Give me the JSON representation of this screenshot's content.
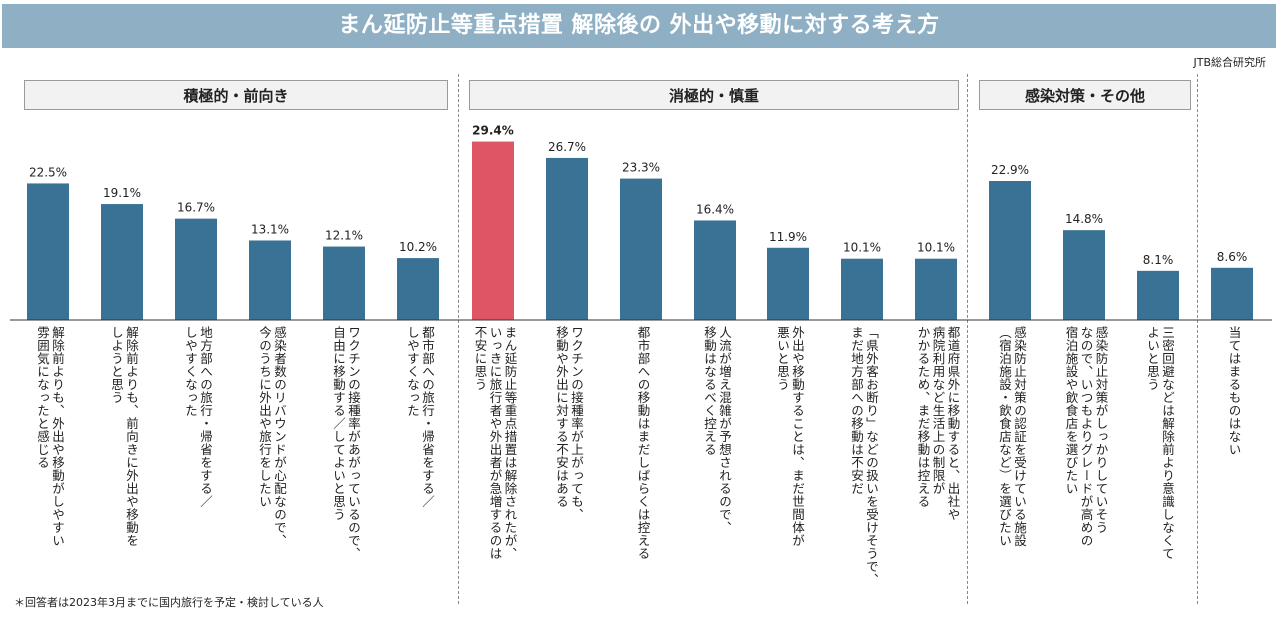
{
  "header": {
    "title": "まん延防止等重点措置 解除後の 外出や移動に対する考え方",
    "source": "JTB総合研究所"
  },
  "groups": [
    {
      "label": "積極的・前向き"
    },
    {
      "label": "消極的・慎重"
    },
    {
      "label": "感染対策・その他"
    }
  ],
  "footnote": "＊回答者は2023年3月までに国内旅行を予定・検討している人",
  "colors": {
    "bar": "#3a7295",
    "highlight": "#e05566"
  },
  "chart_data": {
    "type": "bar",
    "categories": [
      "解除前よりも、外出や移動がしやすい\n雰囲気になったと感じる",
      "解除前よりも、前向きに外出や移動を\nしようと思う",
      "地方部への旅行・帰省をする／\nしやすくなった",
      "感染者数のリバウンドが心配なので、\n今のうちに外出や旅行をしたい",
      "ワクチンの接種率があがっているので、\n自由に移動する／してよいと思う",
      "都市部への旅行・帰省をする／\nしやすくなった",
      "まん延防止等重点措置は解除されたが、\nいっきに旅行者や外出者が急増するのは\n不安に思う",
      "ワクチンの接種率が上がっても、\n移動や外出に対する不安はある",
      "都市部への移動はまだしばらくは控える",
      "人流が増え混雑が予想されるので、\n移動はなるべく控える",
      "外出や移動することは、まだ世間体が\n悪いと思う",
      "「県外客お断り」などの扱いを受けそうで、\nまだ地方部への移動は不安だ",
      "都道府県外に移動すると、出社や\n病院利用など生活上の制限が\nかかるため、まだ移動は控える",
      "感染防止対策の認証を受けている施設\n（宿泊施設・飲食店など）を選びたい",
      "感染防止対策がしっかりしていそう\nなので、いつもよりグレードが高めの\n宿泊施設や飲食店を選びたい",
      "三密回避などは解除前より意識しなくて\nよいと思う",
      "当てはまるものはない"
    ],
    "values": [
      22.5,
      19.1,
      16.7,
      13.1,
      12.1,
      10.2,
      29.4,
      26.7,
      23.3,
      16.4,
      11.9,
      10.1,
      10.1,
      22.9,
      14.8,
      8.1,
      8.6
    ],
    "value_labels": [
      "22.5%",
      "19.1%",
      "16.7%",
      "13.1%",
      "12.1%",
      "10.2%",
      "29.4%",
      "26.7%",
      "23.3%",
      "16.4%",
      "11.9%",
      "10.1%",
      "10.1%",
      "22.9%",
      "14.8%",
      "8.1%",
      "8.6%"
    ],
    "highlight_index": 6,
    "ylim": [
      0,
      30
    ],
    "grid": false,
    "legend": "none"
  }
}
